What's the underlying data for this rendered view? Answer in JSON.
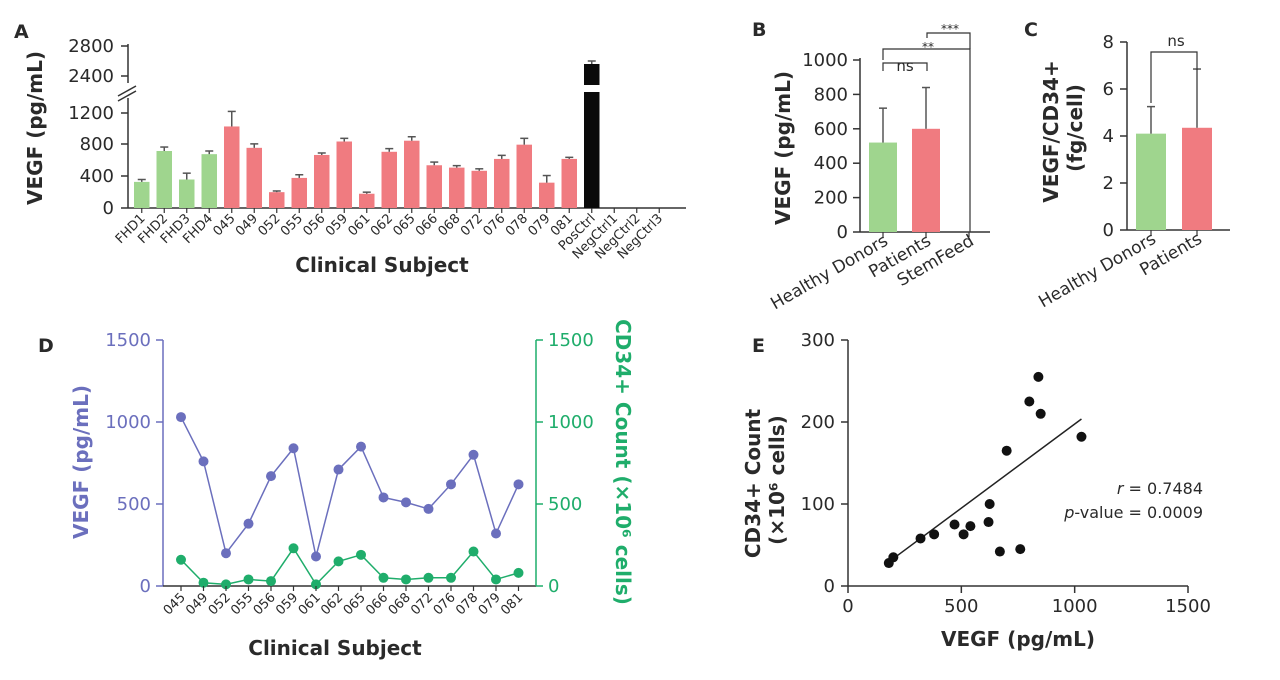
{
  "colors": {
    "healthy": "#9fd58e",
    "patient": "#f07b80",
    "posctrl": "#0a0a0a",
    "vegf_line": "#6b6fbd",
    "cd34_line": "#1fad6b",
    "err": "#555555",
    "axis": "#333333"
  },
  "panel_labels": {
    "a": "A",
    "b": "B",
    "c": "C",
    "d": "D",
    "e": "E"
  },
  "chart_data": [
    {
      "panel": "A",
      "type": "bar",
      "ylabel": "VEGF (pg/mL)",
      "xlabel": "Clinical Subject",
      "yticks_lower": [
        "0",
        "400",
        "800",
        "1200"
      ],
      "yticks_upper": [
        "2400",
        "2800"
      ],
      "ylim_lower": [
        0,
        1350
      ],
      "ylim_upper": [
        2300,
        2850
      ],
      "categories": [
        "FHD1",
        "FHD2",
        "FHD3",
        "FHD4",
        "045",
        "049",
        "052",
        "055",
        "056",
        "059",
        "061",
        "062",
        "065",
        "066",
        "068",
        "072",
        "076",
        "078",
        "079",
        "081",
        "PosCtrl",
        "NegCtrl1",
        "NegCtrl2",
        "NegCtrl3"
      ],
      "groups": [
        "healthy",
        "healthy",
        "healthy",
        "healthy",
        "patient",
        "patient",
        "patient",
        "patient",
        "patient",
        "patient",
        "patient",
        "patient",
        "patient",
        "patient",
        "patient",
        "patient",
        "patient",
        "patient",
        "patient",
        "patient",
        "posctrl",
        "none",
        "none",
        "none"
      ],
      "values": [
        330,
        720,
        360,
        680,
        1030,
        760,
        200,
        380,
        670,
        840,
        180,
        710,
        850,
        540,
        510,
        470,
        620,
        800,
        320,
        620,
        2560,
        0,
        0,
        0
      ],
      "errors": [
        30,
        50,
        80,
        40,
        190,
        50,
        15,
        40,
        25,
        40,
        20,
        40,
        50,
        40,
        25,
        25,
        45,
        80,
        90,
        20,
        40,
        0,
        0,
        0
      ]
    },
    {
      "panel": "B",
      "type": "bar",
      "ylabel": "VEGF (pg/mL)",
      "yticks": [
        "0",
        "200",
        "400",
        "600",
        "800",
        "1000"
      ],
      "ylim": [
        0,
        1000
      ],
      "categories": [
        "Healthy Donors",
        "Patients",
        "StemFeed"
      ],
      "groups": [
        "healthy",
        "patient",
        "none"
      ],
      "values": [
        520,
        600,
        0
      ],
      "errors": [
        200,
        240,
        0
      ],
      "annotations": [
        "ns",
        "**",
        "***"
      ]
    },
    {
      "panel": "C",
      "type": "bar",
      "ylabel": "VEGF/CD34+ (fg/cell)",
      "yticks": [
        "0",
        "2",
        "4",
        "6",
        "8"
      ],
      "ylim": [
        0,
        8
      ],
      "categories": [
        "Healthy Donors",
        "Patients"
      ],
      "groups": [
        "healthy",
        "patient"
      ],
      "values": [
        4.1,
        4.35
      ],
      "errors": [
        1.15,
        2.5
      ],
      "annotations": [
        "ns"
      ]
    },
    {
      "panel": "D",
      "type": "line",
      "ylabel_left": "VEGF (pg/mL)",
      "ylabel_right": "CD34+ Count (×10⁶ cells)",
      "xlabel": "Clinical Subject",
      "yticks_left": [
        "0",
        "500",
        "1000",
        "1500"
      ],
      "yticks_right": [
        "0",
        "500",
        "1000",
        "1500"
      ],
      "ylim": [
        0,
        1500
      ],
      "categories": [
        "045",
        "049",
        "052",
        "055",
        "056",
        "059",
        "061",
        "062",
        "065",
        "066",
        "068",
        "072",
        "076",
        "078",
        "079",
        "081"
      ],
      "series": [
        {
          "name": "VEGF",
          "axis": "left",
          "values": [
            1030,
            760,
            200,
            380,
            670,
            840,
            180,
            710,
            850,
            540,
            510,
            470,
            620,
            800,
            320,
            620
          ]
        },
        {
          "name": "CD34+ Count",
          "axis": "right",
          "values": [
            160,
            20,
            10,
            40,
            30,
            230,
            10,
            150,
            190,
            50,
            40,
            50,
            50,
            210,
            40,
            80
          ]
        }
      ]
    },
    {
      "panel": "E",
      "type": "scatter",
      "xlabel": "VEGF (pg/mL)",
      "ylabel": "CD34+ Count (×10⁶ cells)",
      "xticks": [
        "0",
        "500",
        "1000",
        "1500"
      ],
      "yticks": [
        "0",
        "100",
        "200",
        "300"
      ],
      "xlim": [
        0,
        1500
      ],
      "ylim": [
        0,
        300
      ],
      "x": [
        180,
        200,
        320,
        380,
        470,
        510,
        540,
        620,
        625,
        670,
        700,
        760,
        800,
        840,
        850,
        1030
      ],
      "y": [
        28,
        35,
        58,
        63,
        75,
        63,
        73,
        78,
        100,
        42,
        165,
        45,
        225,
        255,
        210,
        182
      ],
      "fit": {
        "slope": 0.2051,
        "intercept": -7.6
      },
      "stats": {
        "r_label": "r",
        "r_value": " = 0.7484",
        "p_label": "p",
        "p_value": "-value = 0.0009"
      }
    }
  ]
}
